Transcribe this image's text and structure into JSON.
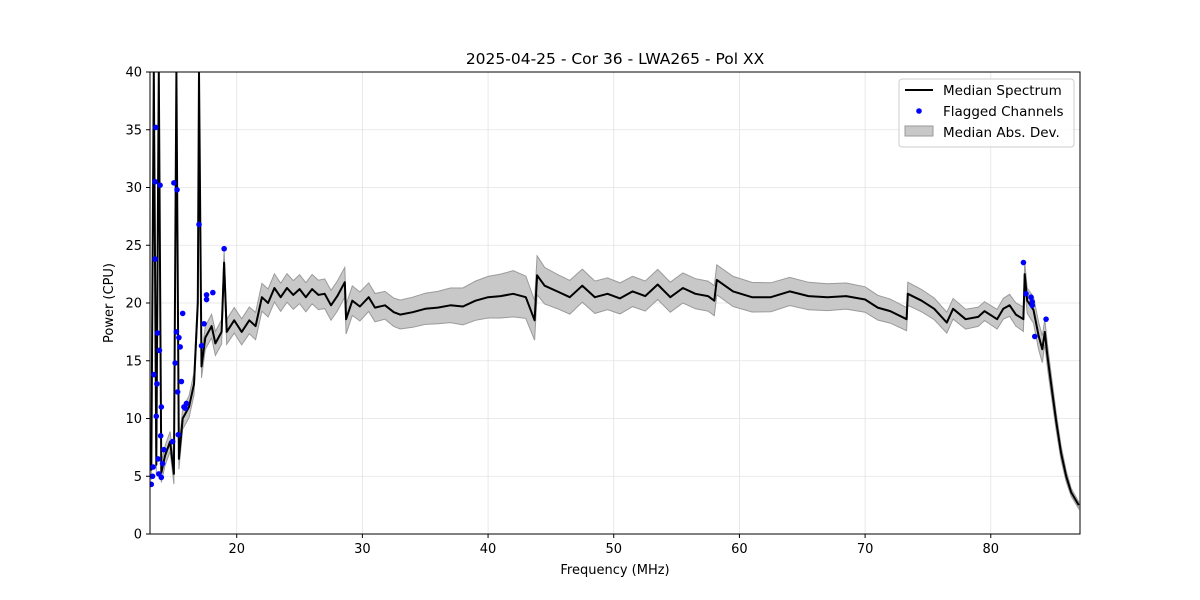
{
  "chart_data": {
    "type": "line",
    "title": "2025-04-25 - Cor 36 - LWA265 - Pol XX",
    "xlabel": "Frequency (MHz)",
    "ylabel": "Power (CPU)",
    "xlim": [
      13.1,
      87.1
    ],
    "ylim": [
      0,
      40
    ],
    "xticks": [
      20,
      30,
      40,
      50,
      60,
      70,
      80
    ],
    "yticks": [
      0,
      5,
      10,
      15,
      20,
      25,
      30,
      35,
      40
    ],
    "grid": true,
    "legend_position": "top-right",
    "legend": [
      "Median Spectrum",
      "Flagged Channels",
      "Median Abs. Dev."
    ],
    "colors": {
      "median": "#000000",
      "flagged": "#0000ff",
      "band_fill": "#c8c8c8",
      "band_edge": "#9a9a9a",
      "grid": "#e3e3e3"
    },
    "median_spectrum": [
      [
        13.2,
        5.5
      ],
      [
        13.4,
        40
      ],
      [
        13.6,
        6
      ],
      [
        13.8,
        40
      ],
      [
        14.0,
        5.3
      ],
      [
        14.3,
        6.8
      ],
      [
        14.7,
        8
      ],
      [
        15.0,
        5.2
      ],
      [
        15.2,
        40
      ],
      [
        15.4,
        6.5
      ],
      [
        15.7,
        10
      ],
      [
        16.2,
        11
      ],
      [
        16.6,
        13
      ],
      [
        16.9,
        20
      ],
      [
        17.0,
        40
      ],
      [
        17.2,
        14.5
      ],
      [
        17.5,
        17
      ],
      [
        18.0,
        18
      ],
      [
        18.3,
        16.5
      ],
      [
        18.8,
        17.5
      ],
      [
        19.0,
        23.5
      ],
      [
        19.2,
        17.5
      ],
      [
        19.8,
        18.5
      ],
      [
        20.4,
        17.5
      ],
      [
        21.0,
        18.5
      ],
      [
        21.5,
        18.0
      ],
      [
        22.0,
        20.5
      ],
      [
        22.5,
        20.0
      ],
      [
        23.0,
        21.3
      ],
      [
        23.5,
        20.5
      ],
      [
        24.0,
        21.3
      ],
      [
        24.5,
        20.7
      ],
      [
        25.0,
        21.2
      ],
      [
        25.5,
        20.5
      ],
      [
        26.0,
        21.2
      ],
      [
        26.5,
        20.7
      ],
      [
        27.0,
        20.8
      ],
      [
        27.5,
        19.8
      ],
      [
        28.0,
        20.6
      ],
      [
        28.6,
        21.8
      ],
      [
        28.7,
        18.6
      ],
      [
        29.2,
        20.2
      ],
      [
        29.8,
        19.7
      ],
      [
        30.5,
        20.5
      ],
      [
        31.0,
        19.6
      ],
      [
        31.8,
        19.8
      ],
      [
        32.5,
        19.2
      ],
      [
        33.0,
        19.0
      ],
      [
        34.0,
        19.2
      ],
      [
        35.0,
        19.5
      ],
      [
        36.0,
        19.6
      ],
      [
        37.0,
        19.8
      ],
      [
        38.0,
        19.7
      ],
      [
        39.0,
        20.2
      ],
      [
        40.0,
        20.5
      ],
      [
        41.0,
        20.6
      ],
      [
        42.0,
        20.8
      ],
      [
        43.0,
        20.5
      ],
      [
        43.7,
        18.5
      ],
      [
        43.9,
        22.4
      ],
      [
        44.5,
        21.5
      ],
      [
        45.5,
        21.0
      ],
      [
        46.5,
        20.5
      ],
      [
        47.5,
        21.5
      ],
      [
        48.5,
        20.5
      ],
      [
        49.5,
        20.8
      ],
      [
        50.5,
        20.4
      ],
      [
        51.5,
        21.0
      ],
      [
        52.5,
        20.6
      ],
      [
        53.5,
        21.6
      ],
      [
        54.5,
        20.5
      ],
      [
        55.5,
        21.3
      ],
      [
        56.5,
        20.8
      ],
      [
        57.5,
        20.6
      ],
      [
        58.0,
        20.2
      ],
      [
        58.2,
        22.0
      ],
      [
        59.5,
        21.0
      ],
      [
        61.0,
        20.5
      ],
      [
        62.5,
        20.5
      ],
      [
        64.0,
        21.0
      ],
      [
        65.5,
        20.6
      ],
      [
        67.0,
        20.5
      ],
      [
        68.5,
        20.6
      ],
      [
        70.0,
        20.3
      ],
      [
        71.0,
        19.6
      ],
      [
        72.0,
        19.3
      ],
      [
        73.3,
        18.6
      ],
      [
        73.4,
        20.8
      ],
      [
        74.5,
        20.2
      ],
      [
        75.5,
        19.5
      ],
      [
        76.5,
        18.3
      ],
      [
        77.0,
        19.5
      ],
      [
        78.0,
        18.6
      ],
      [
        79.0,
        18.8
      ],
      [
        79.5,
        19.3
      ],
      [
        80.5,
        18.6
      ],
      [
        81.0,
        19.5
      ],
      [
        81.5,
        19.8
      ],
      [
        82.0,
        19.0
      ],
      [
        82.6,
        18.6
      ],
      [
        82.7,
        22.5
      ],
      [
        82.9,
        20.2
      ],
      [
        83.4,
        19.4
      ],
      [
        83.8,
        17.2
      ],
      [
        84.1,
        16.0
      ],
      [
        84.3,
        17.5
      ],
      [
        84.5,
        15.5
      ],
      [
        84.8,
        13.0
      ],
      [
        85.2,
        9.8
      ],
      [
        85.6,
        7.0
      ],
      [
        86.0,
        5.0
      ],
      [
        86.4,
        3.6
      ],
      [
        87.0,
        2.5
      ]
    ],
    "median_abs_dev_halfwidth": [
      [
        13.2,
        0.8
      ],
      [
        17.5,
        1.0
      ],
      [
        22.0,
        1.2
      ],
      [
        28.0,
        1.3
      ],
      [
        32.0,
        1.2
      ],
      [
        36.0,
        1.4
      ],
      [
        42.0,
        2.0
      ],
      [
        45.0,
        1.5
      ],
      [
        52.0,
        1.3
      ],
      [
        60.0,
        1.3
      ],
      [
        70.0,
        1.1
      ],
      [
        80.0,
        0.8
      ],
      [
        84.0,
        1.2
      ],
      [
        86.5,
        0.3
      ]
    ],
    "flagged_channels": [
      [
        13.2,
        4.3
      ],
      [
        13.3,
        5.0
      ],
      [
        13.35,
        5.8
      ],
      [
        13.4,
        13.8
      ],
      [
        13.5,
        23.8
      ],
      [
        13.5,
        30.5
      ],
      [
        13.55,
        35.2
      ],
      [
        13.6,
        10.2
      ],
      [
        13.65,
        13.0
      ],
      [
        13.7,
        17.4
      ],
      [
        13.75,
        6.5
      ],
      [
        13.8,
        5.2
      ],
      [
        13.85,
        15.9
      ],
      [
        13.9,
        30.2
      ],
      [
        13.95,
        8.5
      ],
      [
        14.0,
        11.0
      ],
      [
        14.0,
        4.9
      ],
      [
        14.1,
        6.1
      ],
      [
        14.2,
        7.3
      ],
      [
        14.9,
        8.0
      ],
      [
        15.0,
        30.4
      ],
      [
        15.1,
        14.8
      ],
      [
        15.2,
        17.5
      ],
      [
        15.25,
        29.8
      ],
      [
        15.3,
        12.3
      ],
      [
        15.35,
        8.6
      ],
      [
        15.4,
        17.0
      ],
      [
        15.5,
        16.2
      ],
      [
        15.6,
        13.2
      ],
      [
        15.7,
        19.1
      ],
      [
        15.8,
        11.0
      ],
      [
        15.9,
        10.9
      ],
      [
        16.0,
        11.3
      ],
      [
        17.0,
        26.8
      ],
      [
        17.2,
        16.3
      ],
      [
        17.4,
        18.2
      ],
      [
        17.6,
        20.7
      ],
      [
        17.6,
        20.3
      ],
      [
        18.1,
        20.9
      ],
      [
        19.0,
        24.7
      ],
      [
        82.6,
        23.5
      ],
      [
        82.8,
        20.8
      ],
      [
        83.2,
        20.5
      ],
      [
        83.3,
        20.1
      ],
      [
        83.3,
        19.8
      ],
      [
        83.5,
        17.1
      ],
      [
        84.4,
        18.6
      ]
    ]
  }
}
